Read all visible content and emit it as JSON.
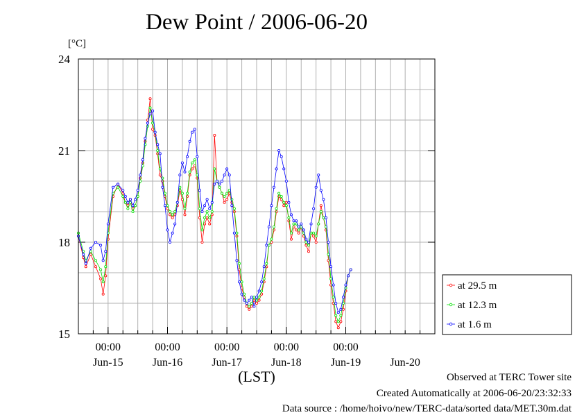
{
  "chart_data": {
    "type": "line",
    "title": "Dew Point / 2006-06-20",
    "ylabel": "[°C]",
    "xlabel": "(LST)",
    "x_unit": "hours since Jun-14 12:00 LST",
    "xlim": [
      0,
      144
    ],
    "ylim": [
      15,
      24
    ],
    "yticks": [
      15,
      18,
      21,
      24
    ],
    "ytick_labels": [
      "15",
      "18",
      "21",
      "24"
    ],
    "xticks": [
      12,
      36,
      60,
      84,
      108
    ],
    "xtick_labels": [
      "00:00",
      "00:00",
      "00:00",
      "00:00",
      "00:00"
    ],
    "day_labels": [
      {
        "x": 12,
        "label": "Jun-15"
      },
      {
        "x": 36,
        "label": "Jun-16"
      },
      {
        "x": 60,
        "label": "Jun-17"
      },
      {
        "x": 84,
        "label": "Jun-18"
      },
      {
        "x": 108,
        "label": "Jun-19"
      },
      {
        "x": 132,
        "label": "Jun-20"
      }
    ],
    "grid": true,
    "legend_position": "right",
    "series": [
      {
        "name": "at 29.5 m",
        "color": "#ff0000",
        "points": [
          [
            0,
            18.2
          ],
          [
            2,
            17.5
          ],
          [
            3,
            17.2
          ],
          [
            5,
            17.6
          ],
          [
            7,
            17.2
          ],
          [
            9,
            16.8
          ],
          [
            10,
            16.3
          ],
          [
            11,
            16.9
          ],
          [
            12,
            18.1
          ],
          [
            14,
            19.5
          ],
          [
            16,
            19.9
          ],
          [
            18,
            19.6
          ],
          [
            19,
            19.3
          ],
          [
            20,
            19.2
          ],
          [
            21,
            19.4
          ],
          [
            22,
            19.1
          ],
          [
            23,
            19.2
          ],
          [
            24,
            19.5
          ],
          [
            25,
            20.1
          ],
          [
            26,
            20.6
          ],
          [
            27,
            21.3
          ],
          [
            28,
            22.0
          ],
          [
            29,
            22.7
          ],
          [
            30,
            21.7
          ],
          [
            31,
            21.5
          ],
          [
            32,
            20.9
          ],
          [
            33,
            20.2
          ],
          [
            34,
            20.0
          ],
          [
            35,
            19.5
          ],
          [
            36,
            19.1
          ],
          [
            37,
            18.9
          ],
          [
            38,
            18.8
          ],
          [
            39,
            18.9
          ],
          [
            40,
            19.2
          ],
          [
            41,
            19.7
          ],
          [
            42,
            19.4
          ],
          [
            43,
            18.9
          ],
          [
            44,
            19.5
          ],
          [
            45,
            20.2
          ],
          [
            46,
            20.4
          ],
          [
            47,
            20.5
          ],
          [
            48,
            20.1
          ],
          [
            49,
            18.8
          ],
          [
            50,
            18.0
          ],
          [
            51,
            18.6
          ],
          [
            52,
            18.8
          ],
          [
            53,
            18.6
          ],
          [
            54,
            18.9
          ],
          [
            55,
            21.5
          ],
          [
            56,
            20.0
          ],
          [
            57,
            19.8
          ],
          [
            58,
            19.6
          ],
          [
            59,
            19.3
          ],
          [
            60,
            19.4
          ],
          [
            61,
            19.6
          ],
          [
            62,
            19.3
          ],
          [
            63,
            19.0
          ],
          [
            64,
            18.2
          ],
          [
            65,
            17.1
          ],
          [
            66,
            16.5
          ],
          [
            67,
            16.2
          ],
          [
            68,
            15.9
          ],
          [
            69,
            15.8
          ],
          [
            70,
            15.9
          ],
          [
            71,
            16.1
          ],
          [
            72,
            16.0
          ],
          [
            73,
            16.1
          ],
          [
            74,
            16.3
          ],
          [
            75,
            16.7
          ],
          [
            76,
            17.2
          ],
          [
            77,
            17.9
          ],
          [
            78,
            18.0
          ],
          [
            79,
            18.4
          ],
          [
            80,
            19.0
          ],
          [
            81,
            19.5
          ],
          [
            82,
            19.4
          ],
          [
            83,
            19.2
          ],
          [
            84,
            19.3
          ],
          [
            85,
            18.7
          ],
          [
            86,
            18.1
          ],
          [
            87,
            18.5
          ],
          [
            88,
            18.4
          ],
          [
            89,
            18.3
          ],
          [
            90,
            18.5
          ],
          [
            91,
            18.2
          ],
          [
            92,
            17.9
          ],
          [
            93,
            17.7
          ],
          [
            94,
            18.3
          ],
          [
            95,
            18.2
          ],
          [
            96,
            18.0
          ],
          [
            97,
            18.6
          ],
          [
            98,
            19.2
          ],
          [
            99,
            18.8
          ],
          [
            100,
            18.4
          ],
          [
            101,
            17.4
          ],
          [
            102,
            16.6
          ],
          [
            103,
            16.0
          ],
          [
            104,
            15.4
          ],
          [
            105,
            15.2
          ],
          [
            106,
            15.4
          ],
          [
            107,
            15.8
          ],
          [
            108,
            16.4
          ],
          [
            109,
            16.9
          ],
          [
            110,
            17.1
          ]
        ]
      },
      {
        "name": "at 12.3 m",
        "color": "#00e000",
        "points": [
          [
            0,
            18.3
          ],
          [
            2,
            17.7
          ],
          [
            3,
            17.4
          ],
          [
            5,
            17.7
          ],
          [
            7,
            17.4
          ],
          [
            9,
            17.1
          ],
          [
            10,
            16.7
          ],
          [
            11,
            17.2
          ],
          [
            12,
            18.3
          ],
          [
            14,
            19.6
          ],
          [
            16,
            19.8
          ],
          [
            18,
            19.5
          ],
          [
            19,
            19.3
          ],
          [
            20,
            19.1
          ],
          [
            21,
            19.3
          ],
          [
            22,
            19.0
          ],
          [
            23,
            19.2
          ],
          [
            24,
            19.5
          ],
          [
            25,
            20.0
          ],
          [
            26,
            20.5
          ],
          [
            27,
            21.2
          ],
          [
            28,
            21.8
          ],
          [
            29,
            22.4
          ],
          [
            30,
            21.9
          ],
          [
            31,
            21.6
          ],
          [
            32,
            21.0
          ],
          [
            33,
            20.4
          ],
          [
            34,
            20.1
          ],
          [
            35,
            19.6
          ],
          [
            36,
            19.2
          ],
          [
            37,
            19.0
          ],
          [
            38,
            18.9
          ],
          [
            39,
            19.0
          ],
          [
            40,
            19.3
          ],
          [
            41,
            19.8
          ],
          [
            42,
            19.6
          ],
          [
            43,
            19.1
          ],
          [
            44,
            19.6
          ],
          [
            45,
            20.3
          ],
          [
            46,
            20.6
          ],
          [
            47,
            20.7
          ],
          [
            48,
            20.2
          ],
          [
            49,
            19.1
          ],
          [
            50,
            18.4
          ],
          [
            51,
            18.8
          ],
          [
            52,
            19.0
          ],
          [
            53,
            18.8
          ],
          [
            54,
            19.0
          ],
          [
            55,
            20.4
          ],
          [
            56,
            20.0
          ],
          [
            57,
            19.8
          ],
          [
            58,
            19.6
          ],
          [
            59,
            19.5
          ],
          [
            60,
            19.6
          ],
          [
            61,
            19.7
          ],
          [
            62,
            19.4
          ],
          [
            63,
            19.1
          ],
          [
            64,
            18.3
          ],
          [
            65,
            17.3
          ],
          [
            66,
            16.7
          ],
          [
            67,
            16.3
          ],
          [
            68,
            16.0
          ],
          [
            69,
            15.9
          ],
          [
            70,
            16.0
          ],
          [
            71,
            16.2
          ],
          [
            72,
            16.1
          ],
          [
            73,
            16.2
          ],
          [
            74,
            16.4
          ],
          [
            75,
            16.8
          ],
          [
            76,
            17.3
          ],
          [
            77,
            17.9
          ],
          [
            78,
            18.1
          ],
          [
            79,
            18.5
          ],
          [
            80,
            19.1
          ],
          [
            81,
            19.6
          ],
          [
            82,
            19.5
          ],
          [
            83,
            19.3
          ],
          [
            84,
            19.2
          ],
          [
            85,
            18.8
          ],
          [
            86,
            18.3
          ],
          [
            87,
            18.6
          ],
          [
            88,
            18.6
          ],
          [
            89,
            18.4
          ],
          [
            90,
            18.5
          ],
          [
            91,
            18.3
          ],
          [
            92,
            18.0
          ],
          [
            93,
            17.9
          ],
          [
            94,
            18.3
          ],
          [
            95,
            18.3
          ],
          [
            96,
            18.2
          ],
          [
            97,
            18.6
          ],
          [
            98,
            19.0
          ],
          [
            99,
            18.8
          ],
          [
            100,
            18.5
          ],
          [
            101,
            17.6
          ],
          [
            102,
            16.8
          ],
          [
            103,
            16.2
          ],
          [
            104,
            15.6
          ],
          [
            105,
            15.4
          ],
          [
            106,
            15.6
          ],
          [
            107,
            16.0
          ],
          [
            108,
            16.5
          ],
          [
            109,
            16.9
          ],
          [
            110,
            17.1
          ]
        ]
      },
      {
        "name": "at 1.6 m",
        "color": "#0000ff",
        "points": [
          [
            0,
            18.2
          ],
          [
            2,
            17.6
          ],
          [
            3,
            17.3
          ],
          [
            5,
            17.8
          ],
          [
            7,
            18.0
          ],
          [
            9,
            17.9
          ],
          [
            10,
            17.4
          ],
          [
            11,
            17.7
          ],
          [
            12,
            18.6
          ],
          [
            14,
            19.8
          ],
          [
            16,
            19.9
          ],
          [
            18,
            19.7
          ],
          [
            19,
            19.5
          ],
          [
            20,
            19.3
          ],
          [
            21,
            19.4
          ],
          [
            22,
            19.2
          ],
          [
            23,
            19.4
          ],
          [
            24,
            19.7
          ],
          [
            25,
            20.2
          ],
          [
            26,
            20.7
          ],
          [
            27,
            21.4
          ],
          [
            28,
            21.9
          ],
          [
            29,
            22.2
          ],
          [
            30,
            22.3
          ],
          [
            31,
            21.6
          ],
          [
            32,
            21.2
          ],
          [
            33,
            20.9
          ],
          [
            34,
            19.8
          ],
          [
            35,
            19.2
          ],
          [
            36,
            18.4
          ],
          [
            37,
            18.0
          ],
          [
            38,
            18.3
          ],
          [
            39,
            18.6
          ],
          [
            40,
            19.3
          ],
          [
            41,
            20.2
          ],
          [
            42,
            20.6
          ],
          [
            43,
            20.3
          ],
          [
            44,
            20.8
          ],
          [
            45,
            21.3
          ],
          [
            46,
            21.6
          ],
          [
            47,
            21.7
          ],
          [
            48,
            20.8
          ],
          [
            49,
            19.7
          ],
          [
            50,
            19.0
          ],
          [
            51,
            19.2
          ],
          [
            52,
            19.4
          ],
          [
            53,
            19.1
          ],
          [
            54,
            19.3
          ],
          [
            55,
            19.9
          ],
          [
            56,
            20.0
          ],
          [
            57,
            19.9
          ],
          [
            58,
            20.0
          ],
          [
            59,
            20.2
          ],
          [
            60,
            20.4
          ],
          [
            61,
            20.2
          ],
          [
            62,
            19.2
          ],
          [
            63,
            18.3
          ],
          [
            64,
            17.4
          ],
          [
            65,
            16.7
          ],
          [
            66,
            16.3
          ],
          [
            67,
            16.1
          ],
          [
            68,
            16.0
          ],
          [
            69,
            16.1
          ],
          [
            70,
            16.2
          ],
          [
            71,
            15.9
          ],
          [
            72,
            16.2
          ],
          [
            73,
            16.4
          ],
          [
            74,
            16.7
          ],
          [
            75,
            17.2
          ],
          [
            76,
            17.9
          ],
          [
            77,
            18.5
          ],
          [
            78,
            19.2
          ],
          [
            79,
            19.8
          ],
          [
            80,
            20.4
          ],
          [
            81,
            21.0
          ],
          [
            82,
            20.8
          ],
          [
            83,
            20.4
          ],
          [
            84,
            20.0
          ],
          [
            85,
            19.3
          ],
          [
            86,
            18.9
          ],
          [
            87,
            18.7
          ],
          [
            88,
            18.7
          ],
          [
            89,
            18.5
          ],
          [
            90,
            18.6
          ],
          [
            91,
            18.4
          ],
          [
            92,
            18.1
          ],
          [
            93,
            18.0
          ],
          [
            94,
            18.6
          ],
          [
            95,
            19.1
          ],
          [
            96,
            19.8
          ],
          [
            97,
            20.2
          ],
          [
            98,
            19.7
          ],
          [
            99,
            19.4
          ],
          [
            100,
            18.8
          ],
          [
            101,
            18.0
          ],
          [
            102,
            17.2
          ],
          [
            103,
            16.6
          ],
          [
            104,
            16.0
          ],
          [
            105,
            15.7
          ],
          [
            106,
            15.8
          ],
          [
            107,
            16.2
          ],
          [
            108,
            16.6
          ],
          [
            109,
            16.9
          ],
          [
            110,
            17.1
          ]
        ]
      }
    ]
  },
  "footer": {
    "line1": "Observed at TERC Tower site",
    "line2": "Created Automatically at 2006-06-20/23:32:33",
    "line3": "Data source : /home/hoivo/new/TERC-data/sorted data/MET.30m.dat"
  }
}
